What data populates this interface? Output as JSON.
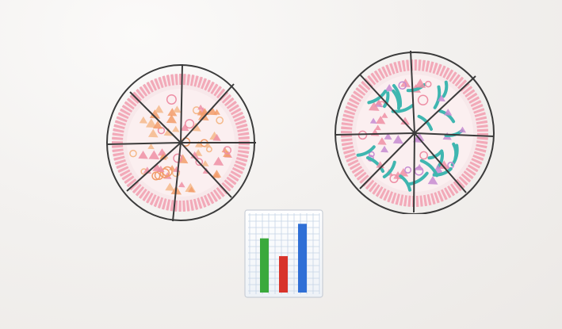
{
  "scene": {
    "background_color": "#f1efed"
  },
  "pizzas": [
    {
      "name": "pizza-left",
      "slices": 8,
      "crust_color": "#f0a3b3",
      "topping_colors": [
        "#f29c6a",
        "#f5b98b",
        "#ee8fa5"
      ]
    },
    {
      "name": "pizza-right",
      "slices": 8,
      "crust_color": "#f0a3b3",
      "topping_colors": [
        "#3fb6b0",
        "#ee8fa5",
        "#c78bd1"
      ]
    }
  ],
  "icon": {
    "name": "bar-chart-icon",
    "bar_colors": [
      "#3aa93c",
      "#d8342b",
      "#2f6fd6"
    ],
    "bar_levels": [
      0.67,
      0.45,
      0.85
    ]
  }
}
